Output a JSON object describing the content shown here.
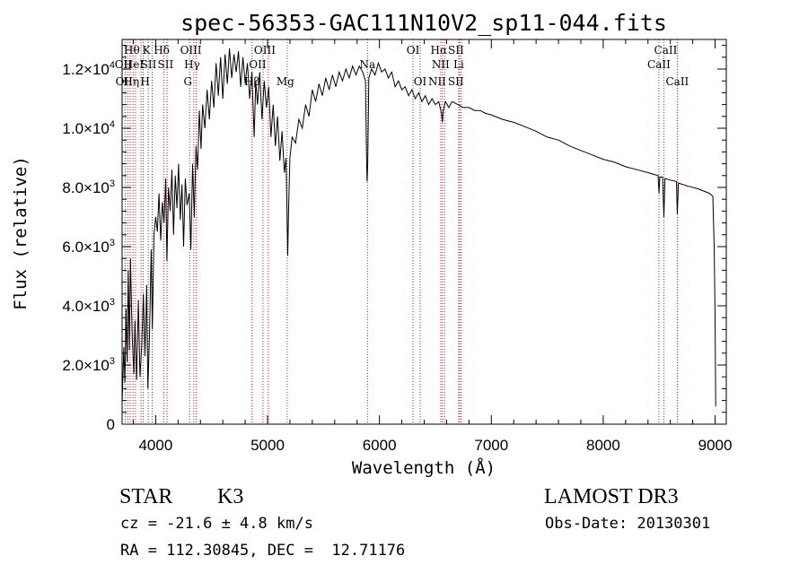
{
  "chart_data": {
    "type": "line",
    "title": "spec-56353-GAC111N10V2_sp11-044.fits",
    "xlabel": "Wavelength (Å)",
    "ylabel": "Flux (relative)",
    "xlim": [
      3700,
      9100
    ],
    "ylim": [
      0,
      13000
    ],
    "grid": false,
    "x_ticks": [
      {
        "value": 4000,
        "label": "4000"
      },
      {
        "value": 5000,
        "label": "5000"
      },
      {
        "value": 6000,
        "label": "6000"
      },
      {
        "value": 7000,
        "label": "7000"
      },
      {
        "value": 8000,
        "label": "8000"
      },
      {
        "value": 9000,
        "label": "9000"
      }
    ],
    "y_ticks": [
      {
        "value": 0,
        "mant": "0",
        "exp": ""
      },
      {
        "value": 2000,
        "mant": "2.0×10",
        "exp": "3"
      },
      {
        "value": 4000,
        "mant": "4.0×10",
        "exp": "3"
      },
      {
        "value": 6000,
        "mant": "6.0×10",
        "exp": "3"
      },
      {
        "value": 8000,
        "mant": "8.0×10",
        "exp": "3"
      },
      {
        "value": 10000,
        "mant": "1.0×10",
        "exp": "4"
      },
      {
        "value": 12000,
        "mant": "1.2×10",
        "exp": "4"
      }
    ],
    "series": [
      {
        "color": "#000000",
        "points": [
          [
            3700,
            700
          ],
          [
            3715,
            2600
          ],
          [
            3725,
            1400
          ],
          [
            3735,
            3900
          ],
          [
            3745,
            2100
          ],
          [
            3755,
            5200
          ],
          [
            3765,
            2500
          ],
          [
            3775,
            5600
          ],
          [
            3790,
            3000
          ],
          [
            3805,
            1700
          ],
          [
            3815,
            3500
          ],
          [
            3830,
            1500
          ],
          [
            3845,
            4200
          ],
          [
            3860,
            1600
          ],
          [
            3875,
            2600
          ],
          [
            3890,
            4400
          ],
          [
            3905,
            2300
          ],
          [
            3920,
            4700
          ],
          [
            3930,
            1200
          ],
          [
            3945,
            3000
          ],
          [
            3960,
            5900
          ],
          [
            3970,
            3200
          ],
          [
            3985,
            6400
          ],
          [
            4000,
            7000
          ],
          [
            4015,
            6500
          ],
          [
            4030,
            7800
          ],
          [
            4045,
            6200
          ],
          [
            4060,
            7500
          ],
          [
            4075,
            6800
          ],
          [
            4090,
            8300
          ],
          [
            4100,
            5500
          ],
          [
            4115,
            8000
          ],
          [
            4130,
            7200
          ],
          [
            4145,
            8600
          ],
          [
            4160,
            6400
          ],
          [
            4175,
            8400
          ],
          [
            4190,
            7300
          ],
          [
            4205,
            8800
          ],
          [
            4220,
            6900
          ],
          [
            4235,
            8100
          ],
          [
            4250,
            6000
          ],
          [
            4265,
            8300
          ],
          [
            4280,
            7400
          ],
          [
            4300,
            7800
          ],
          [
            4315,
            5900
          ],
          [
            4330,
            8800
          ],
          [
            4345,
            7000
          ],
          [
            4360,
            9400
          ],
          [
            4375,
            8600
          ],
          [
            4390,
            10600
          ],
          [
            4405,
            9300
          ],
          [
            4420,
            10800
          ],
          [
            4440,
            10000
          ],
          [
            4460,
            11300
          ],
          [
            4480,
            10300
          ],
          [
            4500,
            11600
          ],
          [
            4520,
            10700
          ],
          [
            4540,
            12200
          ],
          [
            4560,
            11100
          ],
          [
            4580,
            12400
          ],
          [
            4600,
            11000
          ],
          [
            4620,
            12500
          ],
          [
            4640,
            11500
          ],
          [
            4660,
            12700
          ],
          [
            4680,
            11700
          ],
          [
            4700,
            12500
          ],
          [
            4720,
            11900
          ],
          [
            4740,
            12600
          ],
          [
            4760,
            11400
          ],
          [
            4780,
            12400
          ],
          [
            4800,
            11500
          ],
          [
            4820,
            12200
          ],
          [
            4840,
            11000
          ],
          [
            4860,
            11900
          ],
          [
            4880,
            9700
          ],
          [
            4895,
            11600
          ],
          [
            4910,
            10800
          ],
          [
            4930,
            11900
          ],
          [
            4950,
            10300
          ],
          [
            4970,
            11600
          ],
          [
            4990,
            10700
          ],
          [
            5010,
            11400
          ],
          [
            5030,
            9700
          ],
          [
            5050,
            10800
          ],
          [
            5070,
            9400
          ],
          [
            5090,
            10400
          ],
          [
            5110,
            8900
          ],
          [
            5130,
            9900
          ],
          [
            5150,
            8500
          ],
          [
            5165,
            9000
          ],
          [
            5172,
            7500
          ],
          [
            5180,
            5700
          ],
          [
            5188,
            7200
          ],
          [
            5200,
            9000
          ],
          [
            5220,
            9700
          ],
          [
            5250,
            9500
          ],
          [
            5280,
            10300
          ],
          [
            5310,
            10000
          ],
          [
            5340,
            10800
          ],
          [
            5370,
            10400
          ],
          [
            5400,
            11300
          ],
          [
            5430,
            10900
          ],
          [
            5460,
            11500
          ],
          [
            5490,
            11100
          ],
          [
            5520,
            11700
          ],
          [
            5550,
            11300
          ],
          [
            5580,
            11800
          ],
          [
            5610,
            11400
          ],
          [
            5640,
            11900
          ],
          [
            5670,
            11600
          ],
          [
            5700,
            12000
          ],
          [
            5730,
            11700
          ],
          [
            5760,
            12100
          ],
          [
            5790,
            11800
          ],
          [
            5820,
            12100
          ],
          [
            5850,
            11900
          ],
          [
            5875,
            11600
          ],
          [
            5885,
            9000
          ],
          [
            5890,
            8200
          ],
          [
            5895,
            8800
          ],
          [
            5905,
            11700
          ],
          [
            5930,
            12000
          ],
          [
            5960,
            11800
          ],
          [
            5990,
            12200
          ],
          [
            6020,
            11900
          ],
          [
            6050,
            12000
          ],
          [
            6080,
            11700
          ],
          [
            6110,
            11900
          ],
          [
            6140,
            11400
          ],
          [
            6170,
            11600
          ],
          [
            6200,
            11300
          ],
          [
            6230,
            11400
          ],
          [
            6260,
            11100
          ],
          [
            6290,
            11300
          ],
          [
            6320,
            11000
          ],
          [
            6350,
            11200
          ],
          [
            6380,
            10900
          ],
          [
            6410,
            11100
          ],
          [
            6440,
            10800
          ],
          [
            6470,
            11000
          ],
          [
            6500,
            10800
          ],
          [
            6530,
            10900
          ],
          [
            6555,
            10500
          ],
          [
            6563,
            10200
          ],
          [
            6570,
            10600
          ],
          [
            6590,
            10900
          ],
          [
            6620,
            10700
          ],
          [
            6650,
            10900
          ],
          [
            6700,
            10800
          ],
          [
            6750,
            10700
          ],
          [
            6800,
            10700
          ],
          [
            6850,
            10600
          ],
          [
            6900,
            10600
          ],
          [
            6950,
            10500
          ],
          [
            7000,
            10450
          ],
          [
            7100,
            10300
          ],
          [
            7200,
            10200
          ],
          [
            7300,
            10050
          ],
          [
            7400,
            9900
          ],
          [
            7500,
            9700
          ],
          [
            7600,
            9600
          ],
          [
            7700,
            9400
          ],
          [
            7800,
            9250
          ],
          [
            7900,
            9100
          ],
          [
            8000,
            8950
          ],
          [
            8100,
            8850
          ],
          [
            8200,
            8700
          ],
          [
            8300,
            8600
          ],
          [
            8400,
            8500
          ],
          [
            8490,
            8400
          ],
          [
            8498,
            7800
          ],
          [
            8506,
            8350
          ],
          [
            8530,
            8350
          ],
          [
            8542,
            7000
          ],
          [
            8552,
            8300
          ],
          [
            8600,
            8250
          ],
          [
            8655,
            8200
          ],
          [
            8662,
            7100
          ],
          [
            8672,
            8150
          ],
          [
            8750,
            8050
          ],
          [
            8850,
            7950
          ],
          [
            8950,
            7800
          ],
          [
            8980,
            7700
          ],
          [
            8992,
            6000
          ],
          [
            9000,
            3600
          ],
          [
            9005,
            600
          ]
        ]
      }
    ],
    "lines": [
      {
        "x": 3727,
        "labels": [
          {
            "text": "OII",
            "row": 1,
            "dx": -2
          }
        ]
      },
      {
        "x": 3750,
        "labels": [
          {
            "text": "OII",
            "row": 2,
            "dx": -4
          }
        ]
      },
      {
        "x": 3771,
        "labels": [
          {
            "text": "Hθ",
            "row": 0,
            "dx": 2
          }
        ]
      },
      {
        "x": 3798,
        "labels": [
          {
            "text": "Hη",
            "row": 2,
            "dx": -2
          }
        ]
      },
      {
        "x": 3820,
        "labels": [
          {
            "text": "HeI",
            "row": 1,
            "dx": -2
          }
        ]
      },
      {
        "x": 3869,
        "labels": []
      },
      {
        "x": 3889,
        "labels": [
          {
            "text": "H",
            "row": 2,
            "dx": 2
          }
        ]
      },
      {
        "x": 3934,
        "labels": [
          {
            "text": "K",
            "row": 0,
            "dx": -2
          }
        ]
      },
      {
        "x": 3969,
        "labels": [
          {
            "text": "SII",
            "row": 1,
            "dx": -4
          }
        ]
      },
      {
        "x": 4072,
        "labels": [
          {
            "text": "SII",
            "row": 1,
            "dx": 2
          }
        ]
      },
      {
        "x": 4102,
        "labels": [
          {
            "text": "Hδ",
            "row": 0,
            "dx": -6
          }
        ]
      },
      {
        "x": 4304,
        "labels": [
          {
            "text": "G",
            "row": 2,
            "dx": -2
          }
        ]
      },
      {
        "x": 4341,
        "labels": [
          {
            "text": "Hγ",
            "row": 1,
            "dx": -2
          }
        ]
      },
      {
        "x": 4363,
        "labels": [
          {
            "text": "OIII",
            "row": 0,
            "dx": -6
          }
        ]
      },
      {
        "x": 4861,
        "labels": [
          {
            "text": "Hβ",
            "row": 2,
            "dx": 0
          }
        ]
      },
      {
        "x": 4959,
        "labels": [
          {
            "text": "OIII",
            "row": 0,
            "dx": 2
          },
          {
            "text": "OII",
            "row": 1,
            "dx": -6
          }
        ]
      },
      {
        "x": 5007,
        "labels": []
      },
      {
        "x": 5175,
        "labels": [
          {
            "text": "Mg",
            "row": 2,
            "dx": -2
          }
        ]
      },
      {
        "x": 5893,
        "labels": [
          {
            "text": "Na",
            "row": 1,
            "dx": 0
          }
        ]
      },
      {
        "x": 6300,
        "labels": [
          {
            "text": "OI",
            "row": 0,
            "dx": 0
          }
        ]
      },
      {
        "x": 6364,
        "labels": [
          {
            "text": "OI",
            "row": 2,
            "dx": 0
          }
        ]
      },
      {
        "x": 6548,
        "labels": [
          {
            "text": "NII",
            "row": 2,
            "dx": -4
          }
        ]
      },
      {
        "x": 6563,
        "labels": [
          {
            "text": "Hα",
            "row": 0,
            "dx": -4
          },
          {
            "text": "NII",
            "row": 1,
            "dx": -2
          }
        ]
      },
      {
        "x": 6583,
        "labels": []
      },
      {
        "x": 6708,
        "labels": [
          {
            "text": "Li",
            "row": 1,
            "dx": 0
          }
        ]
      },
      {
        "x": 6717,
        "labels": [
          {
            "text": "SII",
            "row": 0,
            "dx": -4
          }
        ]
      },
      {
        "x": 6731,
        "labels": [
          {
            "text": "SII",
            "row": 2,
            "dx": -6
          }
        ]
      },
      {
        "x": 8498,
        "labels": [
          {
            "text": "CaII",
            "row": 1,
            "dx": 0
          }
        ]
      },
      {
        "x": 8542,
        "labels": [
          {
            "text": "CaII",
            "row": 0,
            "dx": 2
          }
        ]
      },
      {
        "x": 8662,
        "labels": [
          {
            "text": "CaII",
            "row": 2,
            "dx": 0
          }
        ]
      }
    ],
    "line_color": "#b22222"
  },
  "info": {
    "object_class": "STAR",
    "subclass": "K3",
    "survey": "LAMOST DR3",
    "cz": "cz = -21.6 ± 4.8 km/s",
    "obs_date": "Obs-Date: 20130301",
    "coords": "RA = 112.30845, DEC =  12.71176"
  }
}
